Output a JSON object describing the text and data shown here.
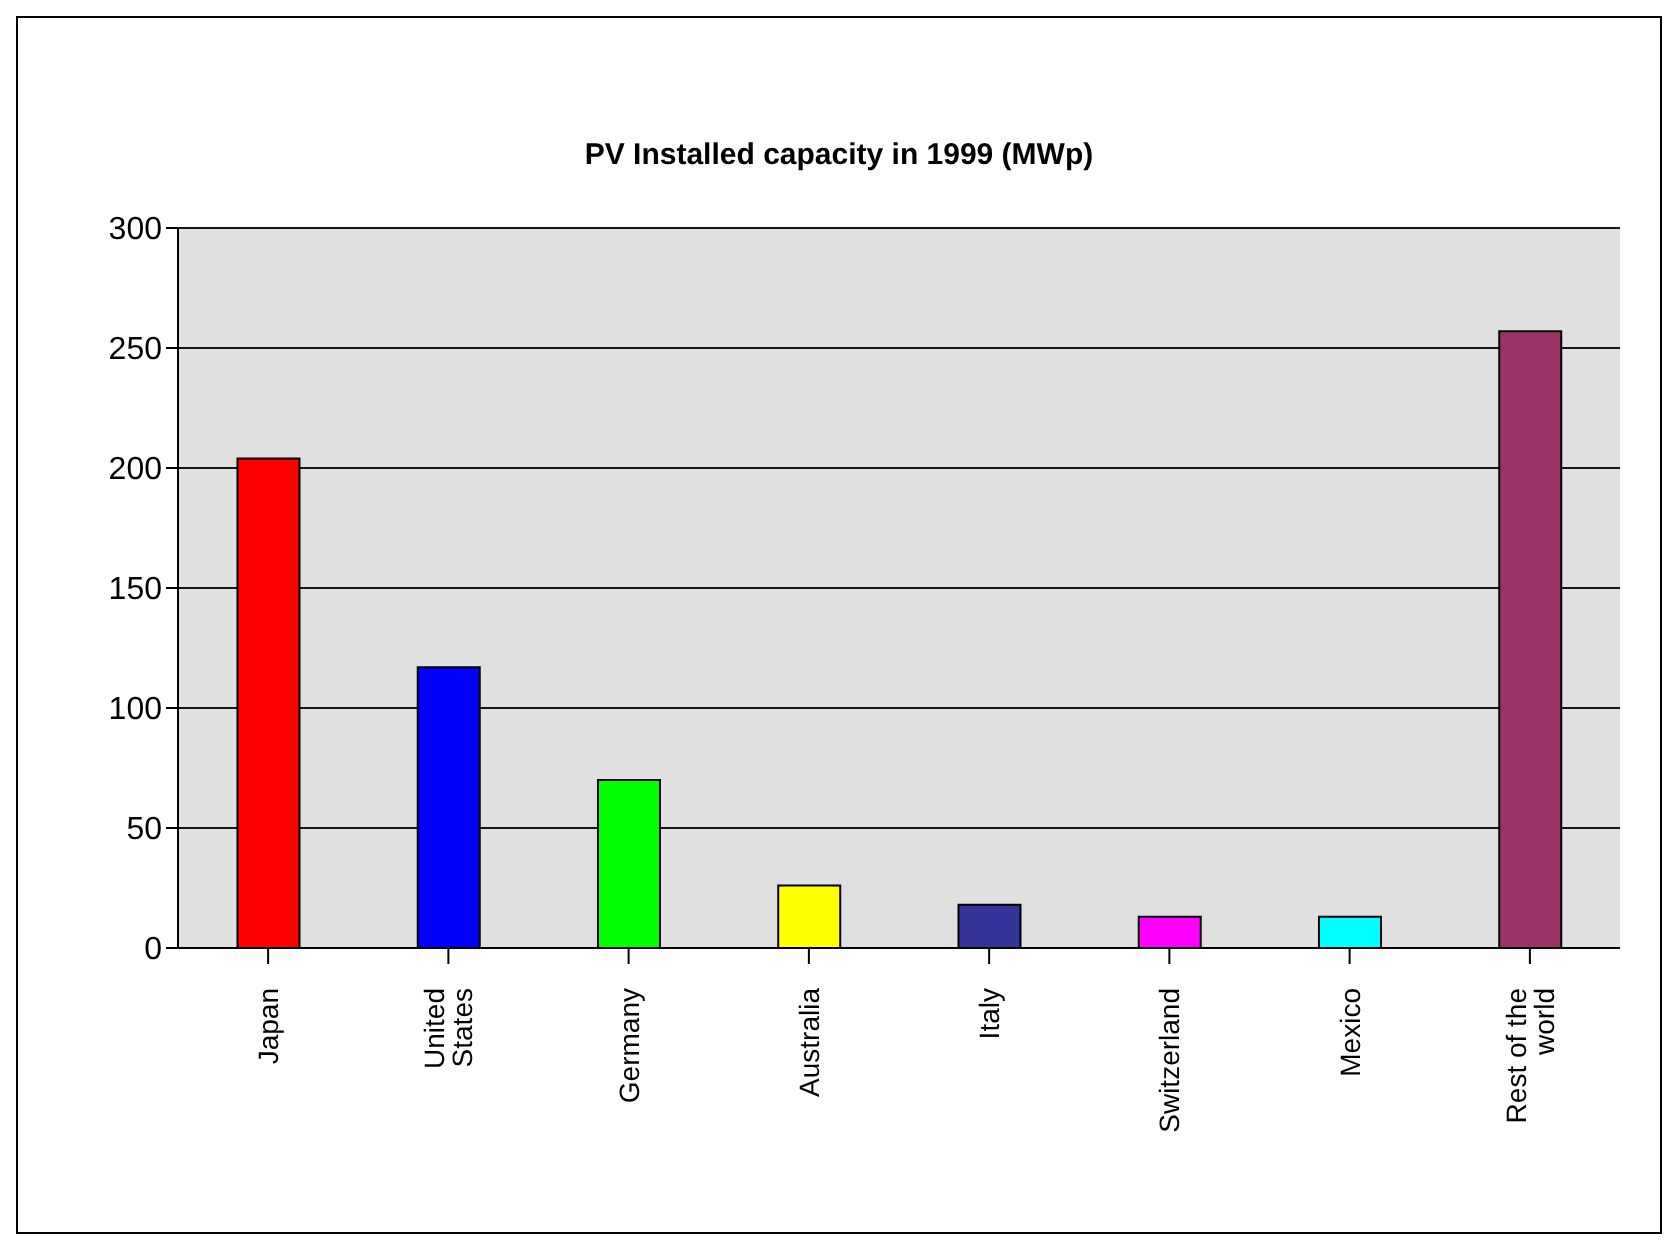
{
  "chart_data": {
    "type": "bar",
    "title": "PV Installed capacity in 1999 (MWp)",
    "categories": [
      "Japan",
      "United States",
      "Germany",
      "Australia",
      "Italy",
      "Switzerland",
      "Mexico",
      "Rest of the world"
    ],
    "values": [
      204,
      117,
      70,
      26,
      18,
      13,
      13,
      257
    ],
    "colors": [
      "#ff0000",
      "#0000ff",
      "#00ff00",
      "#ffff00",
      "#333399",
      "#ff00ff",
      "#00ffff",
      "#993366"
    ],
    "ylim": [
      0,
      300
    ],
    "yticks": [
      0,
      50,
      100,
      150,
      200,
      250,
      300
    ],
    "grid": "y"
  }
}
